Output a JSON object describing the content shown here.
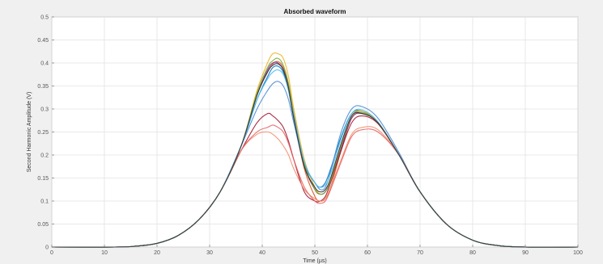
{
  "chart_data": {
    "type": "line",
    "title": "Absorbed waveform",
    "xlabel": "Time (µs)",
    "ylabel": "Second Harmonic Amplitude (V)",
    "xlim": [
      0,
      100
    ],
    "ylim": [
      0,
      0.5
    ],
    "x_ticks": [
      0,
      10,
      20,
      30,
      40,
      50,
      60,
      70,
      80,
      90,
      100
    ],
    "y_ticks": [
      0,
      0.05,
      0.1,
      0.15,
      0.2,
      0.25,
      0.3,
      0.35,
      0.4,
      0.45,
      0.5
    ],
    "x_tick_labels": [
      "0",
      "10",
      "20",
      "30",
      "40",
      "50",
      "60",
      "70",
      "80",
      "90",
      "100"
    ],
    "y_tick_labels": [
      "0",
      "0.05",
      "0.1",
      "0.15",
      "0.2",
      "0.25",
      "0.3",
      "0.35",
      "0.4",
      "0.45",
      "0.5"
    ],
    "grid": true,
    "x": [
      0,
      12,
      16,
      20,
      24,
      28,
      32,
      36,
      39,
      41,
      42,
      43,
      44,
      45,
      46,
      48,
      50,
      51,
      52,
      53,
      55,
      57,
      59,
      62,
      66,
      70,
      75,
      80,
      85,
      90,
      100
    ],
    "series": [
      {
        "color": "#0072bd",
        "values": [
          0,
          0,
          0.002,
          0.008,
          0.025,
          0.06,
          0.12,
          0.22,
          0.32,
          0.37,
          0.39,
          0.393,
          0.38,
          0.34,
          0.28,
          0.18,
          0.14,
          0.13,
          0.14,
          0.17,
          0.24,
          0.29,
          0.295,
          0.27,
          0.2,
          0.12,
          0.05,
          0.015,
          0.003,
          0,
          0
        ]
      },
      {
        "color": "#d95319",
        "values": [
          0,
          0,
          0.002,
          0.008,
          0.025,
          0.06,
          0.12,
          0.22,
          0.33,
          0.38,
          0.398,
          0.403,
          0.39,
          0.35,
          0.28,
          0.17,
          0.11,
          0.1,
          0.105,
          0.13,
          0.21,
          0.28,
          0.29,
          0.27,
          0.2,
          0.12,
          0.05,
          0.015,
          0.003,
          0,
          0
        ]
      },
      {
        "color": "#edb120",
        "values": [
          0,
          0,
          0.002,
          0.008,
          0.025,
          0.06,
          0.12,
          0.22,
          0.34,
          0.4,
          0.42,
          0.42,
          0.41,
          0.37,
          0.3,
          0.19,
          0.13,
          0.115,
          0.12,
          0.145,
          0.22,
          0.285,
          0.295,
          0.272,
          0.2,
          0.12,
          0.05,
          0.015,
          0.003,
          0,
          0
        ]
      },
      {
        "color": "#7e2f8e",
        "values": [
          0,
          0,
          0.002,
          0.008,
          0.025,
          0.06,
          0.12,
          0.22,
          0.33,
          0.385,
          0.4,
          0.4,
          0.385,
          0.345,
          0.28,
          0.175,
          0.125,
          0.115,
          0.12,
          0.145,
          0.215,
          0.28,
          0.29,
          0.27,
          0.2,
          0.12,
          0.05,
          0.015,
          0.003,
          0,
          0
        ]
      },
      {
        "color": "#4a8ad6",
        "values": [
          0,
          0,
          0.002,
          0.008,
          0.025,
          0.06,
          0.12,
          0.22,
          0.3,
          0.34,
          0.355,
          0.36,
          0.35,
          0.32,
          0.27,
          0.18,
          0.14,
          0.125,
          0.13,
          0.165,
          0.25,
          0.3,
          0.305,
          0.28,
          0.205,
          0.12,
          0.05,
          0.015,
          0.003,
          0,
          0
        ]
      },
      {
        "color": "#a2142f",
        "values": [
          0,
          0,
          0.002,
          0.008,
          0.025,
          0.06,
          0.12,
          0.21,
          0.27,
          0.29,
          0.285,
          0.275,
          0.26,
          0.23,
          0.19,
          0.12,
          0.1,
          0.1,
          0.11,
          0.14,
          0.21,
          0.27,
          0.285,
          0.268,
          0.2,
          0.12,
          0.05,
          0.015,
          0.003,
          0,
          0
        ]
      },
      {
        "color": "#f28e6b",
        "values": [
          0,
          0,
          0.002,
          0.008,
          0.025,
          0.06,
          0.12,
          0.21,
          0.245,
          0.25,
          0.245,
          0.235,
          0.22,
          0.2,
          0.17,
          0.125,
          0.105,
          0.1,
          0.105,
          0.13,
          0.19,
          0.245,
          0.26,
          0.255,
          0.2,
          0.12,
          0.05,
          0.015,
          0.003,
          0,
          0
        ]
      },
      {
        "color": "#e86060",
        "values": [
          0,
          0,
          0.002,
          0.008,
          0.025,
          0.06,
          0.12,
          0.21,
          0.25,
          0.26,
          0.265,
          0.26,
          0.25,
          0.225,
          0.19,
          0.13,
          0.1,
          0.095,
          0.1,
          0.125,
          0.185,
          0.24,
          0.255,
          0.25,
          0.2,
          0.12,
          0.05,
          0.015,
          0.003,
          0,
          0
        ]
      },
      {
        "color": "#77ac30",
        "values": [
          0,
          0,
          0.002,
          0.008,
          0.025,
          0.06,
          0.12,
          0.22,
          0.335,
          0.39,
          0.405,
          0.41,
          0.395,
          0.355,
          0.29,
          0.18,
          0.125,
          0.115,
          0.12,
          0.145,
          0.22,
          0.285,
          0.292,
          0.27,
          0.2,
          0.12,
          0.05,
          0.015,
          0.003,
          0,
          0
        ]
      },
      {
        "color": "#4dbeee",
        "values": [
          0,
          0,
          0.002,
          0.008,
          0.025,
          0.06,
          0.12,
          0.22,
          0.32,
          0.365,
          0.38,
          0.385,
          0.375,
          0.34,
          0.285,
          0.185,
          0.14,
          0.13,
          0.135,
          0.16,
          0.235,
          0.29,
          0.298,
          0.272,
          0.2,
          0.12,
          0.05,
          0.015,
          0.003,
          0,
          0
        ]
      },
      {
        "color": "#333333",
        "values": [
          0,
          0,
          0.002,
          0.008,
          0.025,
          0.06,
          0.12,
          0.22,
          0.33,
          0.38,
          0.395,
          0.398,
          0.385,
          0.345,
          0.28,
          0.175,
          0.13,
          0.12,
          0.125,
          0.15,
          0.225,
          0.285,
          0.29,
          0.27,
          0.2,
          0.12,
          0.05,
          0.015,
          0.003,
          0,
          0
        ]
      }
    ]
  }
}
